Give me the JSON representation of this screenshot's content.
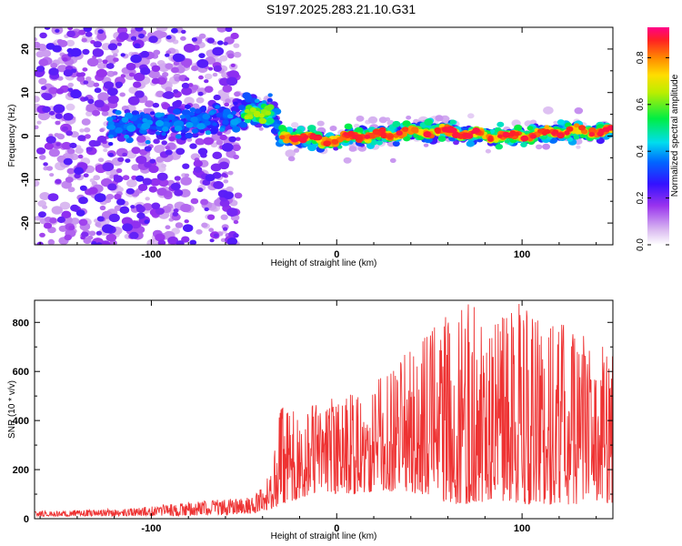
{
  "title": "S197.2025.283.21.10.G31",
  "chart_data": [
    {
      "type": "heatmap",
      "panel": "top",
      "xlabel": "Height of straight line (km)",
      "ylabel": "Frequency (Hz)",
      "xlim": [
        -163,
        149
      ],
      "ylim": [
        -25,
        25
      ],
      "xticks": [
        -100,
        0,
        100
      ],
      "yticks": [
        -20,
        -10,
        0,
        10,
        20
      ],
      "colorbar": {
        "label": "Normalized spectral amplitude",
        "range": [
          0.0,
          0.93
        ],
        "ticks": [
          "0.0",
          "0.2",
          "0.4",
          "0.6",
          "0.8"
        ]
      },
      "description_points": {
        "x": [
          -163,
          -120,
          -100,
          -80,
          -60,
          -45,
          -35,
          -30,
          -20,
          -10,
          0,
          10,
          20,
          40,
          60,
          80,
          100,
          120,
          140,
          149
        ],
        "peak_frequency": [
          0,
          2,
          3,
          3,
          4,
          6,
          5,
          0,
          0,
          -1,
          -1,
          0,
          0,
          1,
          1,
          0,
          0,
          1,
          1,
          1
        ]
      }
    },
    {
      "type": "line",
      "panel": "bottom",
      "xlabel": "Height of straight line (km)",
      "ylabel": "SNR (10 * v/v)",
      "xlim": [
        -163,
        149
      ],
      "ylim": [
        0,
        890
      ],
      "xticks": [
        -100,
        0,
        100
      ],
      "yticks": [
        0,
        200,
        400,
        600,
        800
      ],
      "series": [
        {
          "name": "SNR",
          "color": "#ee3333",
          "envelope_x": [
            -163,
            -140,
            -120,
            -100,
            -80,
            -60,
            -45,
            -40,
            -35,
            -30,
            -20,
            -10,
            0,
            10,
            20,
            30,
            40,
            50,
            60,
            70,
            80,
            90,
            100,
            110,
            120,
            130,
            140,
            149
          ],
          "envelope_high": [
            30,
            35,
            40,
            50,
            70,
            80,
            90,
            130,
            200,
            480,
            420,
            480,
            500,
            520,
            560,
            600,
            720,
            760,
            860,
            880,
            840,
            860,
            890,
            820,
            800,
            760,
            720,
            680
          ],
          "envelope_low": [
            10,
            10,
            10,
            12,
            12,
            15,
            20,
            30,
            40,
            60,
            80,
            100,
            100,
            100,
            110,
            110,
            100,
            90,
            60,
            60,
            70,
            70,
            60,
            60,
            50,
            60,
            60,
            60
          ]
        }
      ]
    }
  ]
}
